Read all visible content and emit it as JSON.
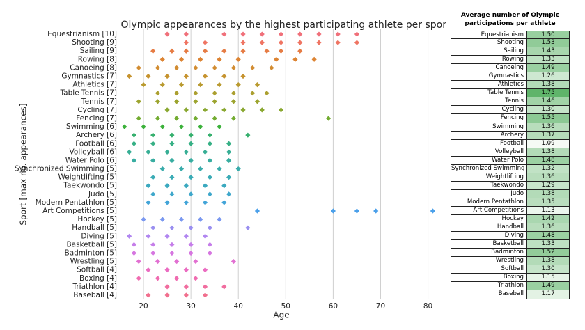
{
  "chart_data": {
    "type": "strip",
    "title": "Olympic appearances by the highest participating athlete per sport",
    "xlabel": "Age",
    "ylabel": "Sport [max no. appearances]",
    "xlim": [
      15,
      83
    ],
    "xticks": [
      20,
      30,
      40,
      50,
      60,
      70,
      80
    ],
    "grid": true,
    "categories": [
      "Equestrianism [10]",
      "Shooting [9]",
      "Sailing [9]",
      "Rowing [8]",
      "Canoeing [8]",
      "Gymnastics [7]",
      "Athletics [7]",
      "Table Tennis [7]",
      "Tennis [7]",
      "Cycling [7]",
      "Fencing [7]",
      "Swimming [6]",
      "Archery [6]",
      "Football [6]",
      "Volleyball [6]",
      "Water Polo [6]",
      "Synchronized Swimming [5]",
      "Weightlifting [5]",
      "Taekwondo [5]",
      "Judo [5]",
      "Modern Pentathlon [5]",
      "Art Competitions [5]",
      "Hockey [5]",
      "Handball [5]",
      "Diving [5]",
      "Basketball [5]",
      "Badminton [5]",
      "Wrestling [5]",
      "Softball [4]",
      "Boxing [4]",
      "Triathlon [4]",
      "Baseball [4]"
    ],
    "values": [
      [
        25,
        29,
        37,
        41,
        45,
        49,
        53,
        57,
        61,
        65
      ],
      [
        29,
        33,
        41,
        45,
        49,
        53,
        57,
        61,
        65
      ],
      [
        22,
        26,
        29,
        33,
        37,
        41,
        46,
        49,
        53
      ],
      [
        24,
        28,
        32,
        36,
        40,
        48,
        52,
        56
      ],
      [
        19,
        23,
        27,
        31,
        35,
        39,
        43,
        47
      ],
      [
        17,
        21,
        25,
        29,
        33,
        37,
        41
      ],
      [
        20,
        24,
        28,
        32,
        36,
        40,
        44
      ],
      [
        23,
        27,
        31,
        35,
        39,
        43,
        46
      ],
      [
        19,
        23,
        27,
        31,
        35,
        39,
        44
      ],
      [
        25,
        29,
        33,
        37,
        41,
        45,
        49
      ],
      [
        19,
        23,
        27,
        31,
        35,
        39,
        59
      ],
      [
        16,
        20,
        24,
        28,
        32,
        36
      ],
      [
        18,
        22,
        26,
        30,
        34,
        42
      ],
      [
        18,
        22,
        26,
        30,
        34,
        38
      ],
      [
        17,
        21,
        25,
        29,
        33,
        38
      ],
      [
        18,
        22,
        26,
        30,
        34,
        38
      ],
      [
        24,
        28,
        32,
        36,
        40
      ],
      [
        22,
        26,
        30,
        34,
        38
      ],
      [
        21,
        25,
        29,
        33,
        37
      ],
      [
        22,
        26,
        30,
        34,
        38
      ],
      [
        21,
        25,
        29,
        33,
        37
      ],
      [
        44,
        60,
        65,
        69,
        81
      ],
      [
        20,
        24,
        28,
        32,
        36
      ],
      [
        22,
        26,
        30,
        34,
        42
      ],
      [
        17,
        21,
        25,
        29,
        33
      ],
      [
        18,
        22,
        26,
        30,
        34
      ],
      [
        18,
        22,
        26,
        30,
        34
      ],
      [
        19,
        23,
        27,
        31,
        39
      ],
      [
        21,
        25,
        29,
        33
      ],
      [
        19,
        23,
        27,
        31
      ],
      [
        25,
        29,
        33,
        37
      ],
      [
        21,
        25,
        29,
        33
      ]
    ],
    "colors": [
      "#f0707a",
      "#ef7462",
      "#e67c44",
      "#dd8433",
      "#d28c31",
      "#c6932f",
      "#b99a2f",
      "#ab9f2f",
      "#9ca42f",
      "#8aa831",
      "#73ac31",
      "#3bb13a",
      "#36b06e",
      "#36b085",
      "#37ae95",
      "#38ada1",
      "#39acab",
      "#3aabb5",
      "#3ba9bf",
      "#3ea7cb",
      "#42a4d8",
      "#4ba0ea",
      "#7a98f0",
      "#9a8ff0",
      "#b186f0",
      "#c57de9",
      "#d676e0",
      "#e270d2",
      "#eb6cc1",
      "#f06bb0",
      "#f16d9f",
      "#f16f8e"
    ]
  },
  "table": {
    "header": "Average number of Olympic participations per athlete",
    "rows": [
      [
        "Equestrianism",
        "1.50"
      ],
      [
        "Shooting",
        "1.53"
      ],
      [
        "Sailing",
        "1.43"
      ],
      [
        "Rowing",
        "1.33"
      ],
      [
        "Canoeing",
        "1.49"
      ],
      [
        "Gymnastics",
        "1.26"
      ],
      [
        "Athletics",
        "1.38"
      ],
      [
        "Table Tennis",
        "1.75"
      ],
      [
        "Tennis",
        "1.46"
      ],
      [
        "Cycling",
        "1.30"
      ],
      [
        "Fencing",
        "1.55"
      ],
      [
        "Swimming",
        "1.36"
      ],
      [
        "Archery",
        "1.37"
      ],
      [
        "Football",
        "1.09"
      ],
      [
        "Volleyball",
        "1.38"
      ],
      [
        "Water Polo",
        "1.48"
      ],
      [
        "Synchronized Swimming",
        "1.32"
      ],
      [
        "Weightlifting",
        "1.36"
      ],
      [
        "Taekwondo",
        "1.29"
      ],
      [
        "Judo",
        "1.38"
      ],
      [
        "Modern Pentathlon",
        "1.35"
      ],
      [
        "Art Competitions",
        "1.13"
      ],
      [
        "Hockey",
        "1.42"
      ],
      [
        "Handball",
        "1.36"
      ],
      [
        "Diving",
        "1.48"
      ],
      [
        "Basketball",
        "1.33"
      ],
      [
        "Badminton",
        "1.52"
      ],
      [
        "Wrestling",
        "1.38"
      ],
      [
        "Softball",
        "1.30"
      ],
      [
        "Boxing",
        "1.15"
      ],
      [
        "Triathlon",
        "1.49"
      ],
      [
        "Baseball",
        "1.17"
      ]
    ]
  }
}
